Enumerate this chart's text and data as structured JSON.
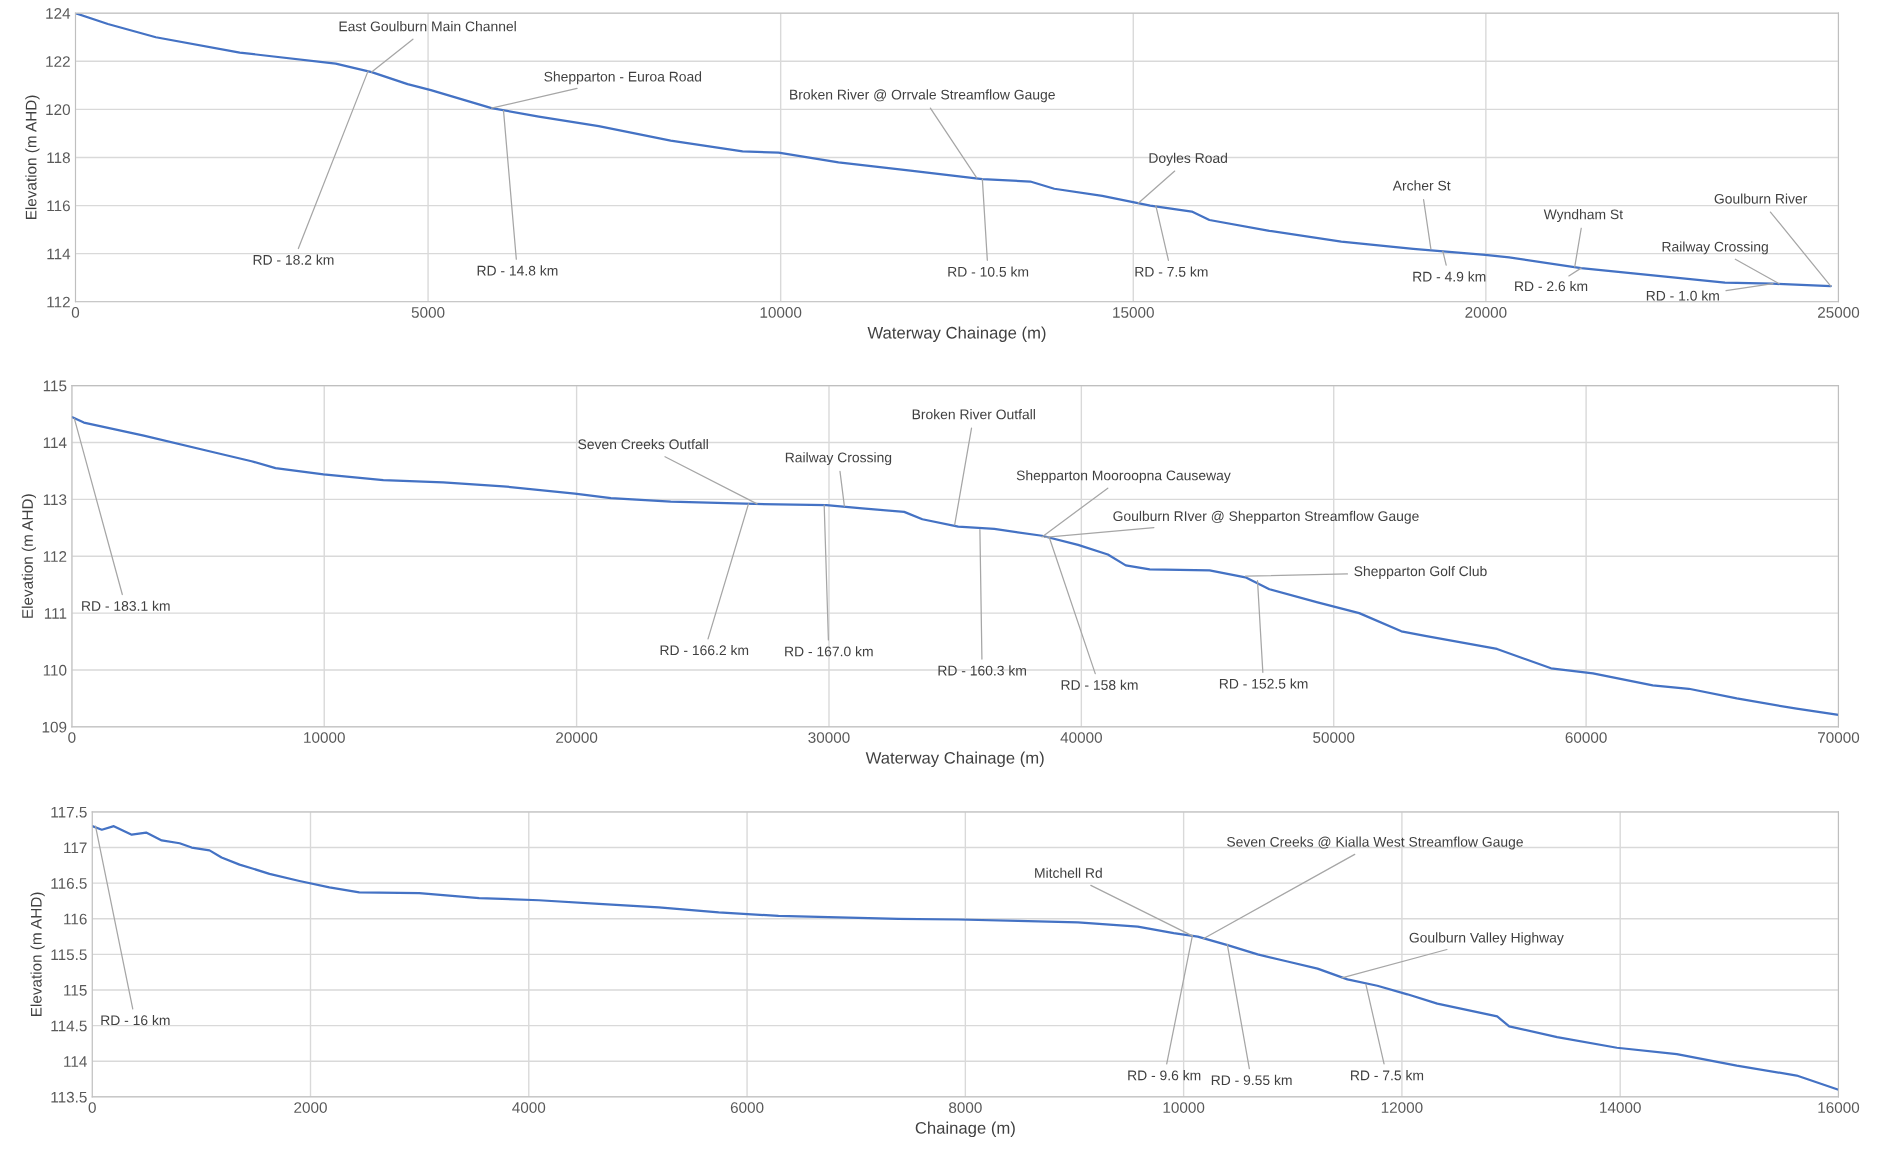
{
  "chart_data": [
    {
      "type": "line",
      "xlabel": "Waterway Chainage (m)",
      "ylabel": "Elevation (m AHD)",
      "xlim": [
        0,
        25000
      ],
      "ylim": [
        112,
        124
      ],
      "xticks": [
        0,
        5000,
        10000,
        15000,
        20000,
        25000
      ],
      "yticks": [
        112,
        114,
        116,
        118,
        120,
        122,
        124
      ],
      "grid": true,
      "marker": "none",
      "line_style": "solid",
      "series": [
        {
          "color": "#4472c4",
          "x": [
            0,
            460,
            1140,
            2330,
            3690,
            4200,
            4710,
            5040,
            5900,
            6570,
            7420,
            8440,
            9460,
            9970,
            10820,
            11840,
            12860,
            13540,
            13880,
            14560,
            15240,
            15830,
            16080,
            16930,
            17950,
            18970,
            19990,
            20330,
            21350,
            22370,
            23390,
            24070,
            24890
          ],
          "values": [
            124,
            123.55,
            123.0,
            122.36,
            121.9,
            121.55,
            121.05,
            120.8,
            120.05,
            119.7,
            119.3,
            118.7,
            118.25,
            118.2,
            117.8,
            117.45,
            117.1,
            117.0,
            116.7,
            116.4,
            116.0,
            115.75,
            115.4,
            114.95,
            114.5,
            114.2,
            113.95,
            113.85,
            113.4,
            113.1,
            112.8,
            112.75,
            112.65
          ]
        }
      ],
      "annotations": [
        {
          "text": "East Goulburn Main Channel",
          "x": 4200,
          "y": 121.55
        },
        {
          "text": "RD - 18.2 km",
          "x": 4150,
          "y": 121.6
        },
        {
          "text": "Shepparton - Euroa Road",
          "x": 5900,
          "y": 120.05
        },
        {
          "text": "RD - 14.8 km",
          "x": 6070,
          "y": 119.95
        },
        {
          "text": "Broken River @ Orrvale Streamflow Gauge",
          "x": 12780,
          "y": 117.15
        },
        {
          "text": "RD - 10.5 km",
          "x": 12860,
          "y": 117.1
        },
        {
          "text": "Doyles Road",
          "x": 15070,
          "y": 116.1
        },
        {
          "text": "RD - 7.5 km",
          "x": 15320,
          "y": 116.0
        },
        {
          "text": "Archer St",
          "x": 19220,
          "y": 114.2
        },
        {
          "text": "RD - 4.9 km",
          "x": 19390,
          "y": 114.1
        },
        {
          "text": "Wyndham St",
          "x": 21260,
          "y": 113.45
        },
        {
          "text": "RD - 2.6 km",
          "x": 21350,
          "y": 113.4
        },
        {
          "text": "Railway Crossing",
          "x": 24160,
          "y": 112.75
        },
        {
          "text": "RD - 1.0 km",
          "x": 24070,
          "y": 112.75
        },
        {
          "text": "Goulburn River",
          "x": 24890,
          "y": 112.65
        }
      ]
    },
    {
      "type": "line",
      "xlabel": "Waterway Chainage (m)",
      "ylabel": "Elevation (m AHD)",
      "xlim": [
        0,
        70000
      ],
      "ylim": [
        109,
        115
      ],
      "xticks": [
        0,
        10000,
        20000,
        30000,
        40000,
        50000,
        60000,
        70000
      ],
      "yticks": [
        109,
        110,
        111,
        112,
        113,
        114,
        115
      ],
      "grid": true,
      "marker": "none",
      "line_style": "solid",
      "series": [
        {
          "color": "#4472c4",
          "x": [
            0,
            475,
            2850,
            5700,
            7120,
            8070,
            9970,
            12340,
            14710,
            17090,
            19930,
            21360,
            23730,
            27050,
            29900,
            31320,
            32980,
            33700,
            35120,
            36550,
            38440,
            39870,
            41050,
            41760,
            42710,
            45080,
            46500,
            47450,
            49360,
            51010,
            52680,
            53620,
            56470,
            58610,
            60270,
            62640,
            64070,
            65970,
            68340,
            70000
          ],
          "values": [
            114.45,
            114.35,
            114.12,
            113.82,
            113.67,
            113.55,
            113.44,
            113.34,
            113.3,
            113.23,
            113.1,
            113.02,
            112.96,
            112.92,
            112.9,
            112.84,
            112.78,
            112.65,
            112.52,
            112.48,
            112.36,
            112.2,
            112.03,
            111.84,
            111.77,
            111.75,
            111.63,
            111.42,
            111.19,
            111.0,
            110.68,
            110.6,
            110.37,
            110.03,
            109.94,
            109.73,
            109.67,
            109.5,
            109.32,
            109.21
          ]
        }
      ],
      "annotations": [
        {
          "text": "RD - 183.1 km",
          "x": 100,
          "y": 114.42
        },
        {
          "text": "Seven Creeks Outfall",
          "x": 27150,
          "y": 112.92
        },
        {
          "text": "RD - 166.2 km",
          "x": 26810,
          "y": 112.92
        },
        {
          "text": "Railway Crossing",
          "x": 30610,
          "y": 112.88
        },
        {
          "text": "RD - 167.0 km",
          "x": 29810,
          "y": 112.9
        },
        {
          "text": "Broken River Outfall",
          "x": 34980,
          "y": 112.55
        },
        {
          "text": "RD - 160.3 km",
          "x": 35980,
          "y": 112.47
        },
        {
          "text": "Shepparton Mooroopna Causeway",
          "x": 38440,
          "y": 112.34
        },
        {
          "text": "Goulburn RIver @ Shepparton Streamflow Gauge",
          "x": 38540,
          "y": 112.33
        },
        {
          "text": "RD - 158 km",
          "x": 38730,
          "y": 112.33
        },
        {
          "text": "Shepparton Golf Club",
          "x": 46500,
          "y": 111.65
        },
        {
          "text": "RD - 152.5 km",
          "x": 46980,
          "y": 111.57
        }
      ]
    },
    {
      "type": "line",
      "xlabel": "Chainage (m)",
      "ylabel": "Elevation (m AHD)",
      "xlim": [
        0,
        16000
      ],
      "ylim": [
        113.5,
        117.5
      ],
      "xticks": [
        0,
        2000,
        4000,
        6000,
        8000,
        10000,
        12000,
        14000,
        16000
      ],
      "yticks": [
        113.5,
        114,
        114.5,
        115,
        115.5,
        116,
        116.5,
        117,
        117.5
      ],
      "grid": true,
      "marker": "none",
      "line_style": "solid",
      "series": [
        {
          "color": "#4472c4",
          "x": [
            0,
            88,
            198,
            362,
            494,
            637,
            801,
            911,
            1075,
            1185,
            1350,
            1460,
            1624,
            1899,
            2173,
            2447,
            2996,
            3545,
            4093,
            4642,
            5191,
            5740,
            6288,
            6837,
            7386,
            7934,
            8483,
            9032,
            9580,
            9909,
            10129,
            10403,
            10678,
            10952,
            11227,
            11501,
            11775,
            12050,
            12324,
            12873,
            12983,
            13422,
            13970,
            14519,
            15068,
            15617,
            16000
          ],
          "values": [
            117.3,
            117.25,
            117.3,
            117.18,
            117.21,
            117.1,
            117.06,
            117.0,
            116.96,
            116.86,
            116.76,
            116.71,
            116.63,
            116.53,
            116.44,
            116.37,
            116.36,
            116.29,
            116.26,
            116.21,
            116.16,
            116.09,
            116.04,
            116.02,
            116.0,
            115.99,
            115.97,
            115.95,
            115.89,
            115.8,
            115.75,
            115.63,
            115.5,
            115.4,
            115.3,
            115.15,
            115.06,
            114.94,
            114.81,
            114.63,
            114.49,
            114.34,
            114.19,
            114.1,
            113.94,
            113.8,
            113.6
          ]
        }
      ],
      "annotations": [
        {
          "text": "RD - 16 km",
          "x": 30,
          "y": 117.3
        },
        {
          "text": "Mitchell Rd",
          "x": 10080,
          "y": 115.76
        },
        {
          "text": "Seven Creeks @ Kialla West Streamflow Gauge",
          "x": 10180,
          "y": 115.72
        },
        {
          "text": "RD - 9.6 km",
          "x": 10080,
          "y": 115.76
        },
        {
          "text": "RD - 9.55 km",
          "x": 10400,
          "y": 115.64
        },
        {
          "text": "Goulburn Valley Highway",
          "x": 11450,
          "y": 115.17
        },
        {
          "text": "RD - 7.5 km",
          "x": 11670,
          "y": 115.08
        }
      ]
    }
  ]
}
